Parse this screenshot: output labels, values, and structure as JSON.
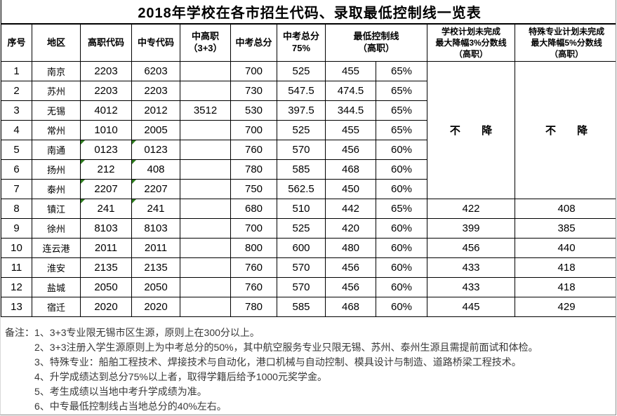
{
  "title": "2018年学校在各市招生代码、录取最低控制线一览表",
  "colors": {
    "border": "#000000",
    "flag_triangle": "#2e7d1f",
    "notes_text": "#383838"
  },
  "table": {
    "headers": [
      {
        "key": "no",
        "label": "序号"
      },
      {
        "key": "region",
        "label": "地区"
      },
      {
        "key": "gz-code",
        "label": "高职代码"
      },
      {
        "key": "zz-code",
        "label": "中专代码"
      },
      {
        "key": "zgz",
        "label": "中高职\n（3+3）"
      },
      {
        "key": "total",
        "label": "中考总分"
      },
      {
        "key": "total75",
        "label": "中考总分\n75%"
      },
      {
        "key": "minline",
        "label": "最低控制线\n（高职）",
        "colspan": 2
      },
      {
        "key": "school-cut",
        "label": "学校计划未完成\n最大降幅3%分数线\n（高职）",
        "small": true
      },
      {
        "key": "special-cut",
        "label": "特殊专业计划未完成\n最大降幅5%分数线\n（高职）",
        "small": true
      }
    ],
    "merged_note": "不 降",
    "rows": [
      {
        "no": "1",
        "region": "南京",
        "gz": "2203",
        "zz": "6203",
        "zgz": "",
        "total": "700",
        "p75": "525",
        "min": "455",
        "pct": "65%",
        "flag": false
      },
      {
        "no": "2",
        "region": "苏州",
        "gz": "2203",
        "zz": "2203",
        "zgz": "",
        "total": "730",
        "p75": "547.5",
        "min": "474.5",
        "pct": "65%",
        "flag": false
      },
      {
        "no": "3",
        "region": "无锡",
        "gz": "4012",
        "zz": "2012",
        "zgz": "3512",
        "total": "530",
        "p75": "397.5",
        "min": "344.5",
        "pct": "65%",
        "flag": false
      },
      {
        "no": "4",
        "region": "常州",
        "gz": "1010",
        "zz": "2005",
        "zgz": "",
        "total": "700",
        "p75": "525",
        "min": "455",
        "pct": "65%",
        "flag": false
      },
      {
        "no": "5",
        "region": "南通",
        "gz": "0123",
        "zz": "0123",
        "zgz": "",
        "total": "760",
        "p75": "570",
        "min": "456",
        "pct": "60%",
        "flag": true
      },
      {
        "no": "6",
        "region": "扬州",
        "gz": "212",
        "zz": "408",
        "zgz": "",
        "total": "780",
        "p75": "585",
        "min": "468",
        "pct": "60%",
        "flag": true
      },
      {
        "no": "7",
        "region": "泰州",
        "gz": "2207",
        "zz": "2207",
        "zgz": "",
        "total": "750",
        "p75": "562.5",
        "min": "450",
        "pct": "60%",
        "flag": true
      },
      {
        "no": "8",
        "region": "镇江",
        "gz": "241",
        "zz": "241",
        "zgz": "",
        "total": "680",
        "p75": "510",
        "min": "442",
        "pct": "65%",
        "flag": true,
        "school": "422",
        "special": "408"
      },
      {
        "no": "9",
        "region": "徐州",
        "gz": "8103",
        "zz": "8103",
        "zgz": "",
        "total": "700",
        "p75": "525",
        "min": "420",
        "pct": "60%",
        "flag": false,
        "school": "399",
        "special": "385"
      },
      {
        "no": "10",
        "region": "连云港",
        "gz": "2011",
        "zz": "2011",
        "zgz": "",
        "total": "800",
        "p75": "600",
        "min": "480",
        "pct": "60%",
        "flag": false,
        "school": "456",
        "special": "440"
      },
      {
        "no": "11",
        "region": "淮安",
        "gz": "2135",
        "zz": "2135",
        "zgz": "",
        "total": "760",
        "p75": "570",
        "min": "456",
        "pct": "60%",
        "flag": false,
        "school": "433",
        "special": "418"
      },
      {
        "no": "12",
        "region": "盐城",
        "gz": "2050",
        "zz": "2050",
        "zgz": "",
        "total": "760",
        "p75": "570",
        "min": "456",
        "pct": "60%",
        "flag": false,
        "school": "433",
        "special": "418"
      },
      {
        "no": "13",
        "region": "宿迁",
        "gz": "2020",
        "zz": "2020",
        "zgz": "",
        "total": "780",
        "p75": "585",
        "min": "468",
        "pct": "60%",
        "flag": false,
        "school": "445",
        "special": "429"
      }
    ]
  },
  "notes": {
    "prefix": "备注：",
    "items": [
      "1、3+3专业限无锡市区生源，原则上在300分以上。",
      "2、3+3注册入学生源原则上为中考总分的50%，其中航空服务专业只限无锡、苏州、泰州生源且需提前面试和体检。",
      "3、特殊专业：船舶工程技术、焊接技术与自动化，港口机械与自动控制、模具设计与制造、道路桥梁工程技术。",
      "4、升学成绩达到总分75%以上者，取得学籍后给予1000元奖学金。",
      "5、考生成绩以当地中考升学成绩为准。",
      "6、中专最低控制线占当地总分的40%左右。"
    ]
  }
}
